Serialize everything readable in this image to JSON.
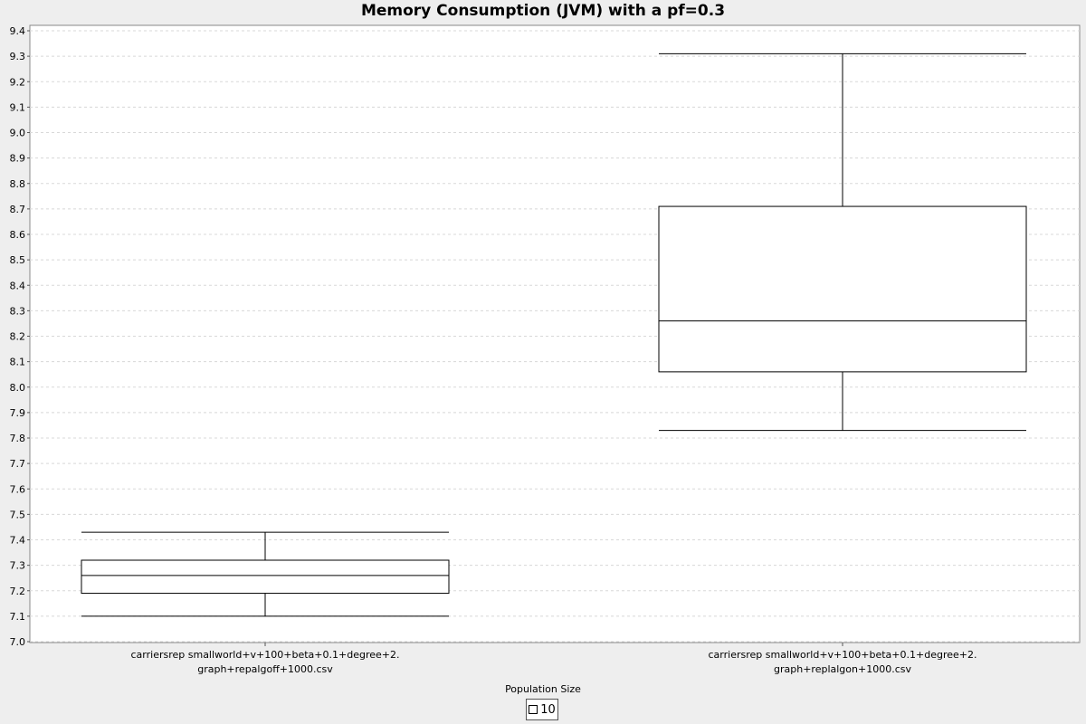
{
  "chart_data": {
    "type": "box",
    "title": "Memory Consumption (JVM) with a pf=0.3",
    "xlabel": "",
    "ylabel": "",
    "ylim": [
      7.0,
      9.4
    ],
    "y_ticks": [
      "7.0",
      "7.1",
      "7.2",
      "7.3",
      "7.4",
      "7.5",
      "7.6",
      "7.7",
      "7.8",
      "7.9",
      "8.0",
      "8.1",
      "8.2",
      "8.3",
      "8.4",
      "8.5",
      "8.6",
      "8.7",
      "8.8",
      "8.9",
      "9.0",
      "9.1",
      "9.2",
      "9.3",
      "9.4"
    ],
    "grid": true,
    "categories": [
      [
        "carriersrep smallworld+v+100+beta+0.1+degree+2.",
        "graph+repalgoff+1000.csv"
      ],
      [
        "carriersrep smallworld+v+100+beta+0.1+degree+2.",
        "graph+replalgon+1000.csv"
      ]
    ],
    "series": [
      {
        "name": "10",
        "boxes": [
          {
            "min": 7.1,
            "q1": 7.19,
            "median": 7.26,
            "q3": 7.32,
            "max": 7.43
          },
          {
            "min": 7.83,
            "q1": 8.06,
            "median": 8.26,
            "q3": 8.71,
            "max": 9.31
          }
        ]
      }
    ],
    "legend": {
      "title": "Population Size",
      "position": "bottom"
    }
  }
}
